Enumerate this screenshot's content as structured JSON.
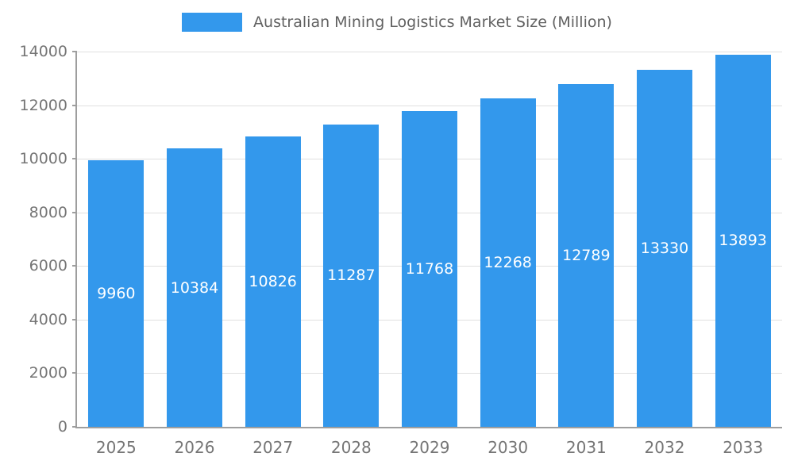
{
  "chart_data": {
    "type": "bar",
    "title": "Australian Mining Logistics Market Size (Million)",
    "categories": [
      "2025",
      "2026",
      "2027",
      "2028",
      "2029",
      "2030",
      "2031",
      "2032",
      "2033"
    ],
    "values": [
      9960,
      10384,
      10826,
      11287,
      11768,
      12268,
      12789,
      13330,
      13893
    ],
    "xlabel": "",
    "ylabel": "",
    "ylim": [
      0,
      14000
    ],
    "y_tick_step": 2000,
    "y_tick_labels": [
      "0",
      "2000",
      "4000",
      "6000",
      "8000",
      "10000",
      "12000",
      "14000"
    ],
    "grid": true,
    "legend_position": "top",
    "colors": {
      "bar": "#3398EC",
      "bar_label_text": "#ffffff",
      "axis_line": "#9e9e9e",
      "gridline": "#e0e0e0",
      "tick_label_text": "#757575",
      "legend_text": "#616161",
      "background": "#ffffff"
    }
  }
}
